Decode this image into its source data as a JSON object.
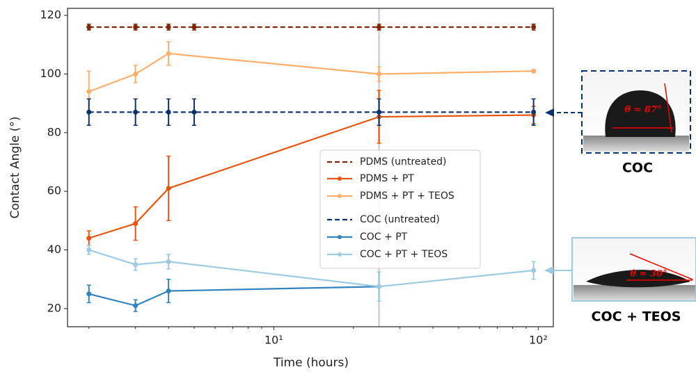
{
  "chart_data": {
    "type": "line",
    "xlabel": "Time (hours)",
    "ylabel": "Contact Angle (°)",
    "xscale": "log",
    "xlim": [
      1.66,
      114
    ],
    "ylim": [
      13.8,
      122.4
    ],
    "xticks": [
      {
        "value": 10,
        "label": "10¹"
      },
      {
        "value": 100,
        "label": "10²"
      }
    ],
    "xminorticks": [
      2,
      3,
      4,
      5,
      6,
      7,
      8,
      9,
      20,
      30,
      40,
      50,
      60,
      70,
      80,
      90
    ],
    "yticks": [
      20,
      40,
      60,
      80,
      100,
      120
    ],
    "vline": 25,
    "series": [
      {
        "name": "PDMS (untreated)",
        "color": "#7f2704",
        "dashed": true,
        "x": [
          2,
          3,
          4,
          5,
          25,
          96
        ],
        "values": [
          116,
          116,
          116,
          116,
          116,
          116
        ],
        "errors": [
          1,
          1,
          1,
          1,
          1,
          1
        ]
      },
      {
        "name": "PDMS + PT",
        "color": "#e6550d",
        "dashed": false,
        "x": [
          2,
          3,
          4,
          25,
          96
        ],
        "values": [
          44,
          49,
          61,
          85.4,
          86
        ],
        "errors": [
          2.5,
          5.7,
          11,
          9,
          3
        ]
      },
      {
        "name": "PDMS + PT + TEOS",
        "color": "#fdae6b",
        "dashed": false,
        "x": [
          2,
          3,
          4,
          25,
          96
        ],
        "values": [
          94,
          100,
          107,
          100,
          101
        ],
        "errors": [
          7,
          3,
          4,
          2.5,
          0.5
        ]
      },
      {
        "name": "COC (untreated)",
        "color": "#08306b",
        "dashed": true,
        "x": [
          2,
          3,
          4,
          5,
          25,
          96
        ],
        "values": [
          87,
          87,
          87,
          87,
          87,
          87
        ],
        "errors": [
          4.5,
          4.5,
          4.5,
          4.5,
          4.5,
          4.5
        ]
      },
      {
        "name": "COC + PT",
        "color": "#3182bd",
        "dashed": false,
        "x": [
          2,
          3,
          4,
          25
        ],
        "values": [
          25,
          21,
          26,
          27.5
        ],
        "errors": [
          3,
          2,
          4,
          0
        ]
      },
      {
        "name": "COC + PT + TEOS",
        "color": "#9ecae1",
        "dashed": false,
        "x": [
          2,
          3,
          4,
          25,
          96
        ],
        "values": [
          40,
          35,
          36,
          27.5,
          33
        ],
        "errors": [
          1.5,
          2,
          2.5,
          5,
          3
        ]
      }
    ]
  },
  "insets": [
    {
      "label": "COC",
      "angle": "θ ≈ 87°"
    },
    {
      "label": "COC + TEOS",
      "angle": "θ ≈ 30°"
    }
  ]
}
